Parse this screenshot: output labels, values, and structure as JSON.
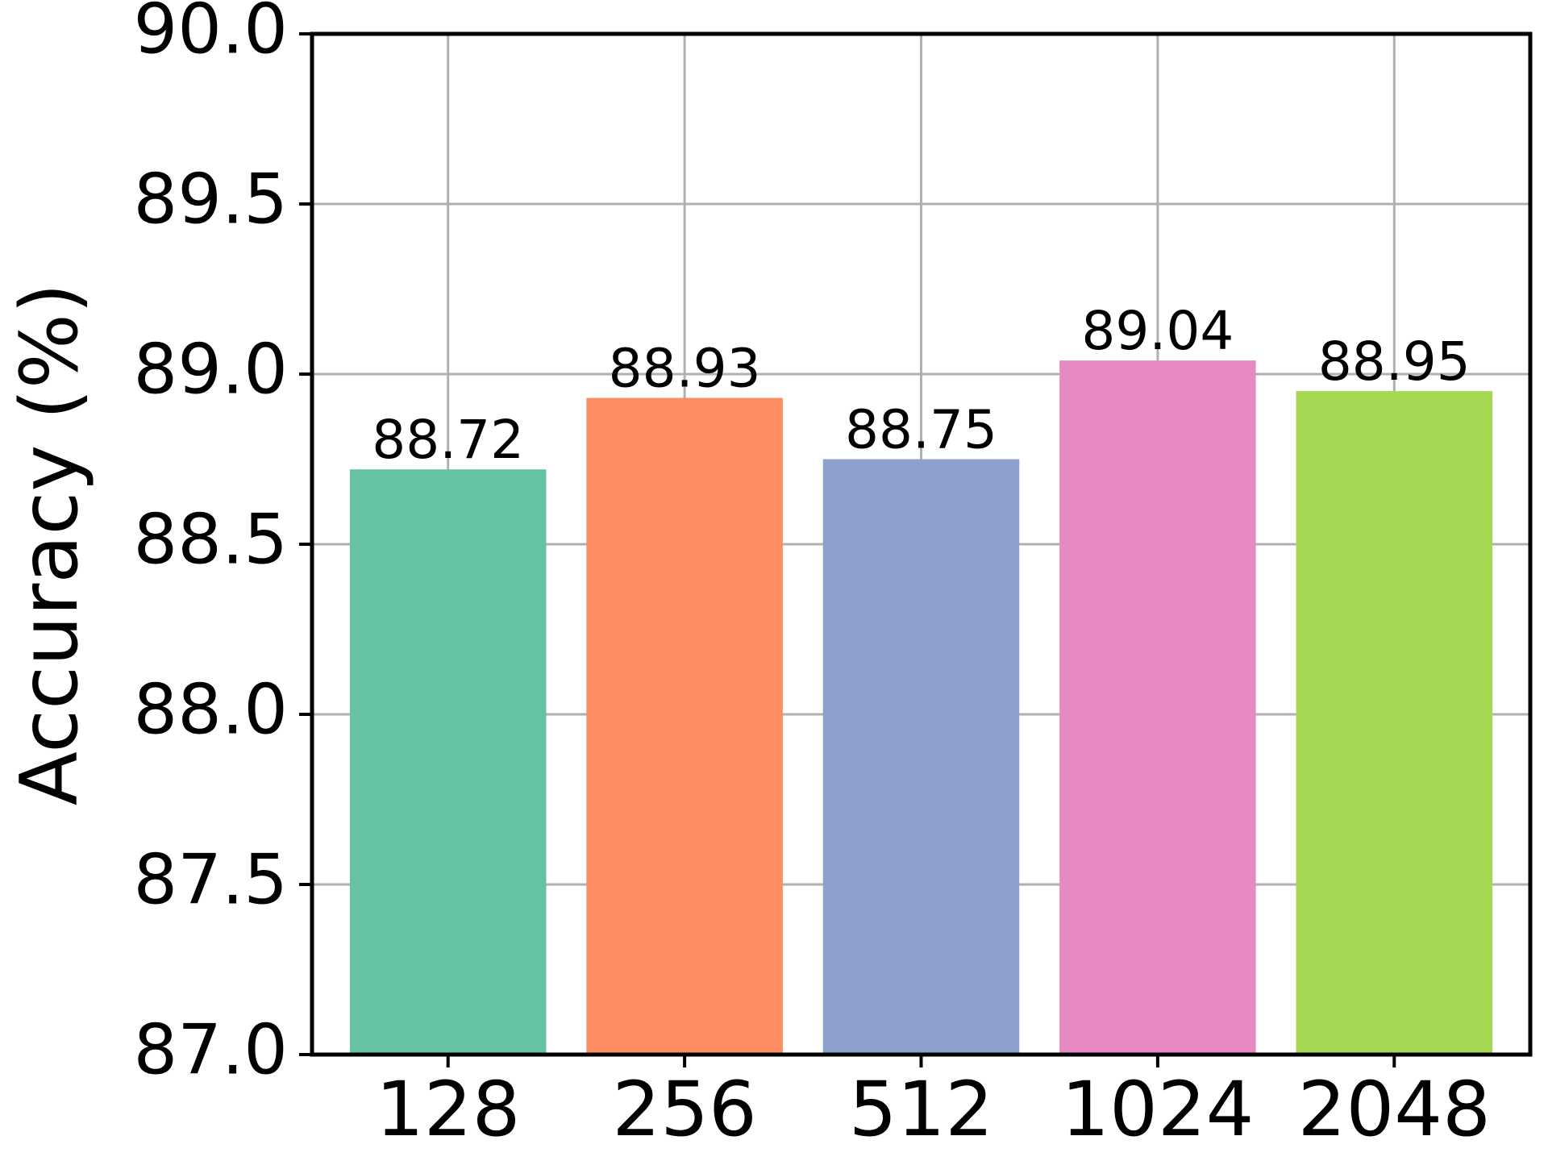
{
  "chart_data": {
    "type": "bar",
    "title": "",
    "xlabel": "",
    "ylabel": "Accuracy (%)",
    "categories": [
      "128",
      "256",
      "512",
      "1024",
      "2048"
    ],
    "values": [
      88.72,
      88.93,
      88.75,
      89.04,
      88.95
    ],
    "value_labels": [
      "88.72",
      "88.93",
      "88.75",
      "89.04",
      "88.95"
    ],
    "colors": [
      "#66c2a5",
      "#fc8d62",
      "#8da0cb",
      "#e78ac3",
      "#a6d854"
    ],
    "ylim": [
      87.0,
      90.0
    ],
    "yticks": [
      87.0,
      87.5,
      88.0,
      88.5,
      89.0,
      89.5,
      90.0
    ],
    "ytick_labels": [
      "87.0",
      "87.5",
      "88.0",
      "88.5",
      "89.0",
      "89.5",
      "90.0"
    ],
    "grid": true,
    "grid_color": "#b0b0b0",
    "legend": "none"
  }
}
